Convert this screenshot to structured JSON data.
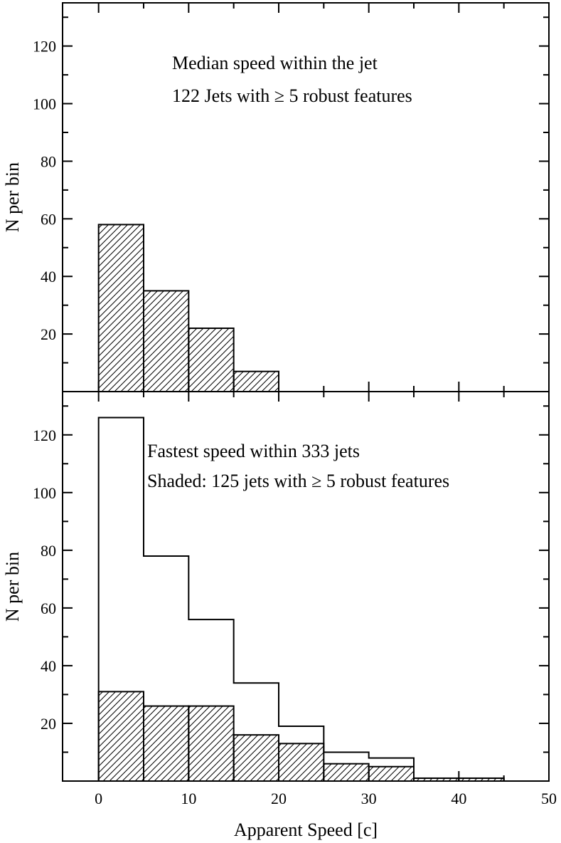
{
  "chart_data": [
    {
      "type": "bar",
      "panel": "top",
      "annotations": [
        "Median speed within the jet",
        "122 Jets with  ≥ 5 robust features"
      ],
      "ylabel": "N per bin",
      "xlabel": "",
      "xlim": [
        -4,
        50
      ],
      "ylim": [
        0,
        135
      ],
      "yticks": [
        20,
        40,
        60,
        80,
        100,
        120
      ],
      "bin_edges": [
        0,
        5,
        10,
        15,
        20
      ],
      "series": [
        {
          "style": "hatched",
          "values": [
            58,
            35,
            22,
            7
          ]
        }
      ]
    },
    {
      "type": "bar",
      "panel": "bottom",
      "annotations": [
        "Fastest speed within 333 jets",
        "Shaded: 125 jets with  ≥ 5 robust features"
      ],
      "ylabel": "N per bin",
      "xlabel": "Apparent Speed [c]",
      "xlim": [
        -4,
        50
      ],
      "ylim": [
        0,
        135
      ],
      "xticks": [
        0,
        10,
        20,
        30,
        40,
        50
      ],
      "yticks": [
        20,
        40,
        60,
        80,
        100,
        120
      ],
      "bin_edges": [
        0,
        5,
        10,
        15,
        20,
        25,
        30,
        35,
        40,
        45,
        50
      ],
      "series": [
        {
          "style": "outline",
          "values": [
            126,
            78,
            56,
            34,
            19,
            10,
            8,
            1,
            1,
            0
          ]
        },
        {
          "style": "hatched",
          "values": [
            31,
            26,
            26,
            16,
            13,
            6,
            5,
            1,
            1,
            0
          ]
        }
      ]
    }
  ]
}
